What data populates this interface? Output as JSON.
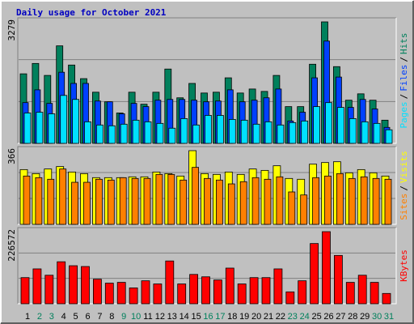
{
  "chart_data": [
    {
      "type": "bar",
      "title": "Daily usage for October 2021",
      "ylim": [
        0,
        3279
      ],
      "yticks": [
        3279
      ],
      "legend_separator": "/",
      "series": [
        {
          "name": "Hits",
          "color": "#00805c",
          "values": [
            1877,
            2157,
            1834,
            2632,
            2114,
            1747,
            1381,
            1122,
            820,
            1381,
            1057,
            1381,
            2006,
            1230,
            1618,
            1359,
            1381,
            1769,
            1359,
            1467,
            1402,
            1834,
            992,
            992,
            2136,
            3279,
            2071,
            1165,
            1337,
            1165,
            626
          ]
        },
        {
          "name": "Files",
          "color": "#0040ff",
          "values": [
            1100,
            1445,
            1079,
            1920,
            1618,
            1618,
            1143,
            1122,
            798,
            1079,
            992,
            1165,
            1186,
            1186,
            1165,
            1122,
            1143,
            1445,
            1122,
            1165,
            1230,
            1467,
            604,
            841,
            1769,
            2761,
            1790,
            971,
            1186,
            928,
            431
          ]
        },
        {
          "name": "Pages",
          "color": "#00e0ff",
          "values": [
            820,
            841,
            798,
            1294,
            1186,
            582,
            496,
            475,
            518,
            626,
            582,
            539,
            410,
            669,
            496,
            755,
            755,
            647,
            626,
            518,
            582,
            496,
            561,
            604,
            992,
            1100,
            971,
            669,
            582,
            539,
            367
          ]
        }
      ]
    },
    {
      "type": "bar",
      "ylim": [
        0,
        366
      ],
      "yticks": [
        366
      ],
      "legend_separator": "/",
      "series": [
        {
          "name": "Visits",
          "color": "#ffff00",
          "values": [
            272,
            252,
            275,
            287,
            260,
            252,
            232,
            232,
            232,
            236,
            236,
            260,
            252,
            240,
            366,
            252,
            248,
            260,
            248,
            275,
            268,
            291,
            228,
            224,
            299,
            307,
            311,
            256,
            272,
            256,
            240
          ]
        },
        {
          "name": "Sites",
          "color": "#ff8000",
          "values": [
            240,
            232,
            224,
            275,
            209,
            209,
            224,
            220,
            232,
            228,
            228,
            248,
            248,
            220,
            283,
            228,
            220,
            201,
            212,
            232,
            224,
            236,
            161,
            146,
            232,
            240,
            252,
            228,
            236,
            228,
            224
          ]
        }
      ]
    },
    {
      "type": "bar",
      "ylim": [
        0,
        226572
      ],
      "yticks": [
        226572
      ],
      "series": [
        {
          "name": "KBytes",
          "color": "#ff0000",
          "values": [
            82170,
            109560,
            89640,
            131970,
            119520,
            117030,
            77190,
            64740,
            67230,
            49800,
            72210,
            62250,
            134460,
            62250,
            92130,
            84660,
            74700,
            112050,
            62250,
            82170,
            82170,
            109560,
            37350,
            72210,
            189240,
            226572,
            151890,
            67230,
            89640,
            67230,
            32370
          ]
        }
      ],
      "categories": [
        "1",
        "2",
        "3",
        "4",
        "5",
        "6",
        "7",
        "8",
        "9",
        "10",
        "11",
        "12",
        "13",
        "14",
        "15",
        "16",
        "17",
        "18",
        "19",
        "20",
        "21",
        "22",
        "23",
        "24",
        "25",
        "26",
        "27",
        "28",
        "29",
        "30",
        "31"
      ],
      "category_colors": [
        "#000000",
        "#00805c",
        "#00805c",
        "#000000",
        "#000000",
        "#000000",
        "#000000",
        "#000000",
        "#00805c",
        "#00805c",
        "#000000",
        "#000000",
        "#000000",
        "#000000",
        "#000000",
        "#00805c",
        "#00805c",
        "#000000",
        "#000000",
        "#000000",
        "#000000",
        "#000000",
        "#00805c",
        "#00805c",
        "#000000",
        "#000000",
        "#000000",
        "#000000",
        "#000000",
        "#00805c",
        "#00805c"
      ]
    }
  ]
}
